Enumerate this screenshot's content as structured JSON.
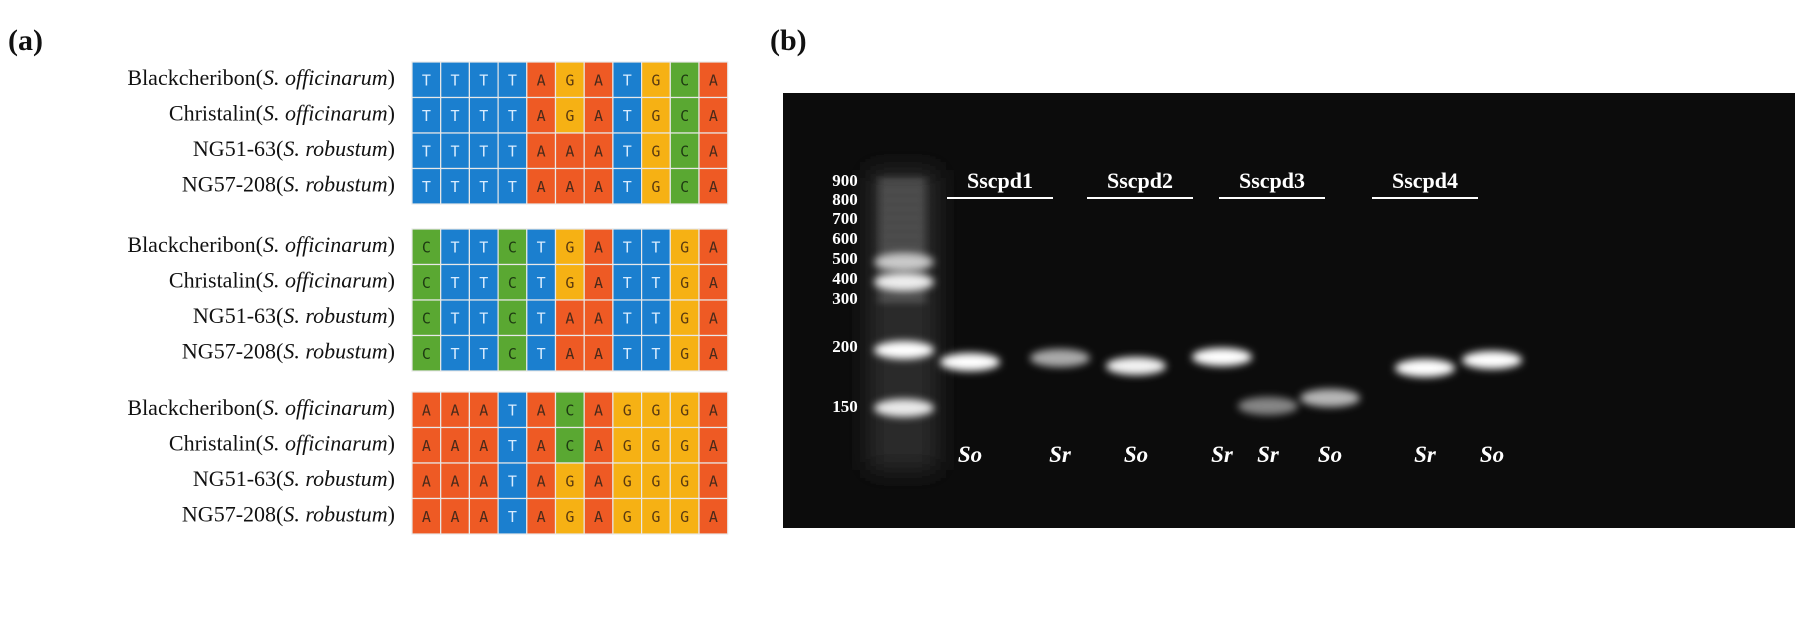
{
  "panel_a": {
    "label": "(a)",
    "base_colors": {
      "A": "#ee5a24",
      "G": "#f6b114",
      "T": "#1b7fcf",
      "C": "#5aa832"
    },
    "base_text_colors": {
      "A": "#4a2a1a",
      "G": "#5a3a10",
      "T": "#d8ecff",
      "C": "#1e3a12"
    },
    "blocks": [
      {
        "rows": [
          {
            "prefix": "Blackcheribon(",
            "species": "S. officinarum",
            "suffix": ")",
            "bases": [
              "T",
              "T",
              "T",
              "T",
              "A",
              "G",
              "A",
              "T",
              "G",
              "C",
              "A"
            ]
          },
          {
            "prefix": "Christalin(",
            "species": "S. officinarum",
            "suffix": ")",
            "bases": [
              "T",
              "T",
              "T",
              "T",
              "A",
              "G",
              "A",
              "T",
              "G",
              "C",
              "A"
            ]
          },
          {
            "prefix": "NG51-63(",
            "species": "S. robustum",
            "suffix": ")",
            "bases": [
              "T",
              "T",
              "T",
              "T",
              "A",
              "A",
              "A",
              "T",
              "G",
              "C",
              "A"
            ]
          },
          {
            "prefix": "NG57-208(",
            "species": "S. robustum",
            "suffix": ")",
            "bases": [
              "T",
              "T",
              "T",
              "T",
              "A",
              "A",
              "A",
              "T",
              "G",
              "C",
              "A"
            ]
          }
        ]
      },
      {
        "rows": [
          {
            "prefix": "Blackcheribon(",
            "species": "S. officinarum",
            "suffix": ")",
            "bases": [
              "C",
              "T",
              "T",
              "C",
              "T",
              "G",
              "A",
              "T",
              "T",
              "G",
              "A"
            ]
          },
          {
            "prefix": "Christalin(",
            "species": "S. officinarum",
            "suffix": ")",
            "bases": [
              "C",
              "T",
              "T",
              "C",
              "T",
              "G",
              "A",
              "T",
              "T",
              "G",
              "A"
            ]
          },
          {
            "prefix": "NG51-63(",
            "species": "S. robustum",
            "suffix": ")",
            "bases": [
              "C",
              "T",
              "T",
              "C",
              "T",
              "A",
              "A",
              "T",
              "T",
              "G",
              "A"
            ]
          },
          {
            "prefix": "NG57-208(",
            "species": "S. robustum",
            "suffix": ")",
            "bases": [
              "C",
              "T",
              "T",
              "C",
              "T",
              "A",
              "A",
              "T",
              "T",
              "G",
              "A"
            ]
          }
        ]
      },
      {
        "rows": [
          {
            "prefix": "Blackcheribon(",
            "species": "S. officinarum",
            "suffix": ")",
            "bases": [
              "A",
              "A",
              "A",
              "T",
              "A",
              "C",
              "A",
              "G",
              "G",
              "G",
              "A"
            ]
          },
          {
            "prefix": "Christalin(",
            "species": "S. officinarum",
            "suffix": ")",
            "bases": [
              "A",
              "A",
              "A",
              "T",
              "A",
              "C",
              "A",
              "G",
              "G",
              "G",
              "A"
            ]
          },
          {
            "prefix": "NG51-63(",
            "species": "S. robustum",
            "suffix": ")",
            "bases": [
              "A",
              "A",
              "A",
              "T",
              "A",
              "G",
              "A",
              "G",
              "G",
              "G",
              "A"
            ]
          },
          {
            "prefix": "NG57-208(",
            "species": "S. robustum",
            "suffix": ")",
            "bases": [
              "A",
              "A",
              "A",
              "T",
              "A",
              "G",
              "A",
              "G",
              "G",
              "G",
              "A"
            ]
          }
        ]
      }
    ]
  },
  "panel_b": {
    "label": "(b)",
    "ladder": [
      900,
      800,
      700,
      600,
      500,
      400,
      300,
      200,
      150
    ],
    "groups": [
      "Sscpd1",
      "Sscpd2",
      "Sscpd3",
      "Sscpd4"
    ],
    "lanes": [
      "So",
      "Sr",
      "So",
      "Sr",
      "Sr",
      "So",
      "Sr",
      "So"
    ]
  }
}
